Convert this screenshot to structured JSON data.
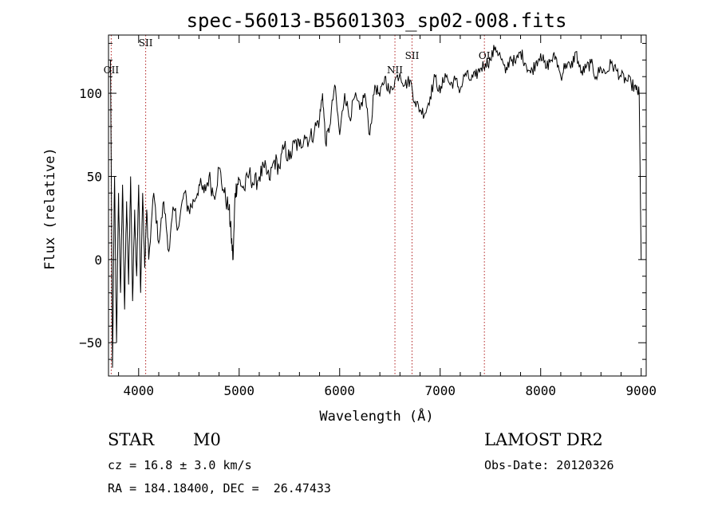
{
  "chart_data": {
    "type": "line",
    "title": "spec-56013-B5601303_sp02-008.fits",
    "xlabel": "Wavelength (Å)",
    "ylabel": "Flux (relative)",
    "xlim": [
      3700,
      9050
    ],
    "ylim": [
      -70,
      135
    ],
    "xticks": [
      4000,
      5000,
      6000,
      7000,
      8000,
      9000
    ],
    "yticks": [
      -50,
      0,
      50,
      100
    ],
    "grid": false,
    "line_color": "#000000",
    "marker_color": "#b22222",
    "emission_lines": [
      {
        "label": "OII",
        "wavelength": 3727
      },
      {
        "label": "SII",
        "wavelength": 4070
      },
      {
        "label": "NII",
        "wavelength": 6550
      },
      {
        "label": "SII",
        "wavelength": 6720
      },
      {
        "label": "OI",
        "wavelength": 7440
      }
    ],
    "series": [
      {
        "x": [
          3720,
          3740,
          3760,
          3780,
          3800,
          3820,
          3840,
          3860,
          3880,
          3900,
          3920,
          3940,
          3960,
          3980,
          4000,
          4020,
          4040,
          4060,
          4080,
          4100,
          4150,
          4200,
          4250,
          4300,
          4350,
          4400,
          4450,
          4500,
          4550,
          4600,
          4650,
          4700,
          4750,
          4800,
          4850,
          4900,
          4920,
          4940,
          4960,
          4980,
          5000,
          5050,
          5100,
          5150,
          5200,
          5250,
          5300,
          5350,
          5400,
          5450,
          5500,
          5550,
          5600,
          5650,
          5700,
          5750,
          5800,
          5830,
          5860,
          5900,
          5950,
          6000,
          6050,
          6100,
          6150,
          6200,
          6250,
          6300,
          6350,
          6400,
          6450,
          6500,
          6550,
          6600,
          6650,
          6700,
          6750,
          6800,
          6850,
          6900,
          6950,
          7000,
          7050,
          7100,
          7150,
          7200,
          7250,
          7300,
          7350,
          7400,
          7450,
          7500,
          7550,
          7600,
          7650,
          7700,
          7750,
          7800,
          7850,
          7900,
          7950,
          8000,
          8050,
          8100,
          8150,
          8200,
          8250,
          8300,
          8350,
          8400,
          8450,
          8500,
          8550,
          8600,
          8650,
          8700,
          8750,
          8800,
          8850,
          8900,
          8950,
          8980,
          9000
        ],
        "y": [
          120,
          -65,
          50,
          -50,
          40,
          -20,
          45,
          -30,
          35,
          -15,
          50,
          -25,
          30,
          -10,
          45,
          -20,
          40,
          -5,
          30,
          0,
          40,
          10,
          35,
          5,
          30,
          20,
          40,
          30,
          35,
          45,
          40,
          50,
          38,
          55,
          40,
          30,
          15,
          0,
          40,
          45,
          48,
          42,
          52,
          45,
          50,
          55,
          48,
          60,
          55,
          68,
          60,
          70,
          68,
          75,
          72,
          78,
          85,
          100,
          70,
          80,
          105,
          75,
          100,
          85,
          98,
          90,
          100,
          75,
          105,
          98,
          110,
          100,
          108,
          112,
          105,
          108,
          95,
          90,
          88,
          98,
          110,
          100,
          112,
          105,
          108,
          102,
          112,
          108,
          110,
          115,
          118,
          120,
          128,
          122,
          112,
          122,
          118,
          125,
          118,
          112,
          118,
          124,
          115,
          120,
          122,
          110,
          118,
          115,
          125,
          112,
          115,
          118,
          110,
          115,
          112,
          118,
          114,
          110,
          108,
          106,
          102,
          100,
          0
        ]
      }
    ]
  },
  "info": {
    "object_class": "STAR",
    "subclass": "M0",
    "survey": "LAMOST DR2",
    "redshift": "cz = 16.8 ± 3.0 km/s",
    "obs_date": "Obs-Date: 20120326",
    "coords": "RA = 184.18400, DEC =  26.47433"
  }
}
